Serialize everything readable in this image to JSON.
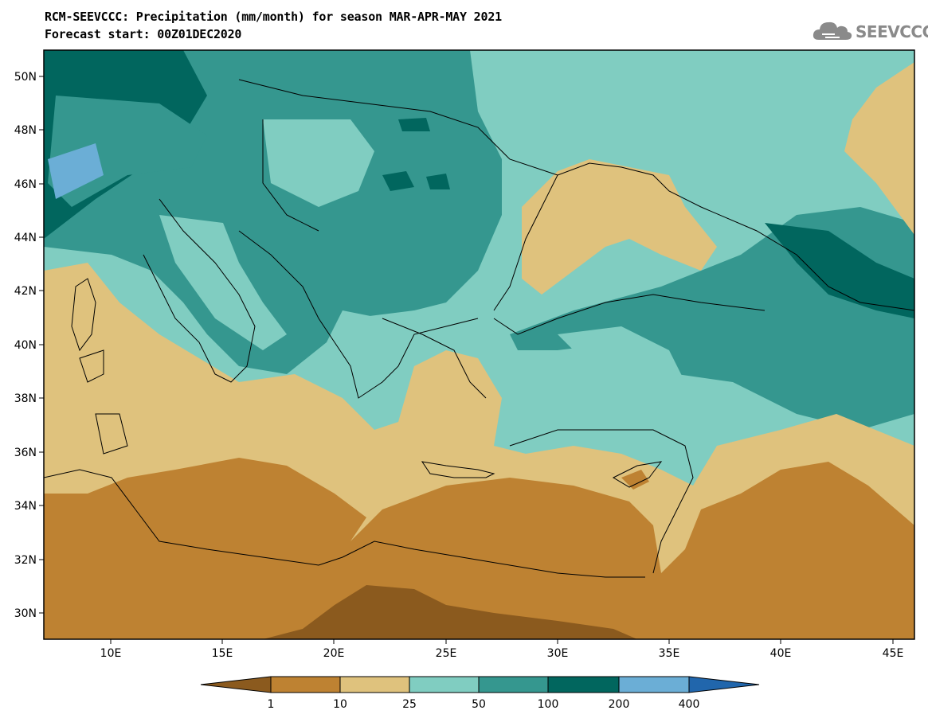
{
  "title": {
    "line1": "RCM-SEEVCCC: Precipitation (mm/month) for season MAR-APR-MAY 2021",
    "line2": "Forecast start: 00Z01DEC2020"
  },
  "logo": {
    "text": "SEEVCCC",
    "icon": "cloud-icon"
  },
  "map": {
    "projection": "lat-lon",
    "lon_range": [
      7,
      46
    ],
    "lat_range": [
      29,
      51
    ],
    "lat_ticks": [
      "50N",
      "48N",
      "46N",
      "44N",
      "42N",
      "40N",
      "38N",
      "36N",
      "34N",
      "32N",
      "30N"
    ],
    "lon_ticks": [
      "10E",
      "15E",
      "20E",
      "25E",
      "30E",
      "35E",
      "40E",
      "45E"
    ],
    "field": "precipitation",
    "units": "mm/month"
  },
  "colorbar": {
    "labels": [
      "1",
      "10",
      "25",
      "50",
      "100",
      "200",
      "400"
    ],
    "colors": [
      "#8b5a1e",
      "#be8232",
      "#dfc27d",
      "#80cdc1",
      "#35978f",
      "#01665e",
      "#6baed6",
      "#2166ac"
    ]
  }
}
